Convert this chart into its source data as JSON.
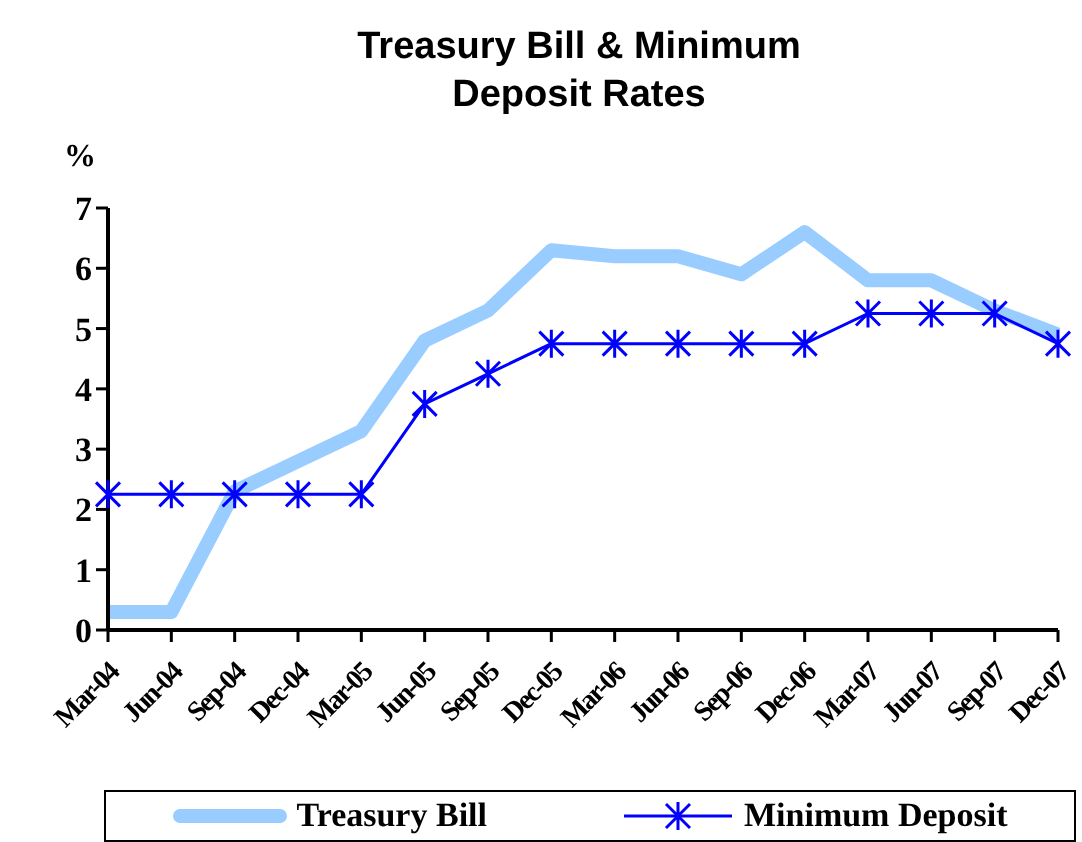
{
  "chart_data": {
    "type": "line",
    "title": "Treasury Bill & Minimum Deposit Rates",
    "ylabel": "%",
    "categories": [
      "Mar-04",
      "Jun-04",
      "Sep-04",
      "Dec-04",
      "Mar-05",
      "Jun-05",
      "Sep-05",
      "Dec-05",
      "Mar-06",
      "Jun-06",
      "Sep-06",
      "Dec-06",
      "Mar-07",
      "Jun-07",
      "Sep-07",
      "Dec-07"
    ],
    "series": [
      {
        "name": "Treasury Bill",
        "color": "#99ccff",
        "marker": "none",
        "values": [
          0.3,
          0.3,
          2.3,
          2.8,
          3.3,
          4.8,
          5.3,
          6.3,
          6.2,
          6.2,
          5.9,
          6.6,
          5.8,
          5.8,
          5.3,
          4.9
        ]
      },
      {
        "name": "Minimum Deposit",
        "color": "#0000ff",
        "marker": "cross",
        "values": [
          2.25,
          2.25,
          2.25,
          2.25,
          2.25,
          3.75,
          4.25,
          4.75,
          4.75,
          4.75,
          4.75,
          4.75,
          5.25,
          5.25,
          5.25,
          4.75
        ]
      }
    ],
    "ylim": [
      0,
      7
    ],
    "yticks": [
      0,
      1,
      2,
      3,
      4,
      5,
      6,
      7
    ],
    "grid": false,
    "legend": "bottom",
    "line_style": "solid"
  }
}
